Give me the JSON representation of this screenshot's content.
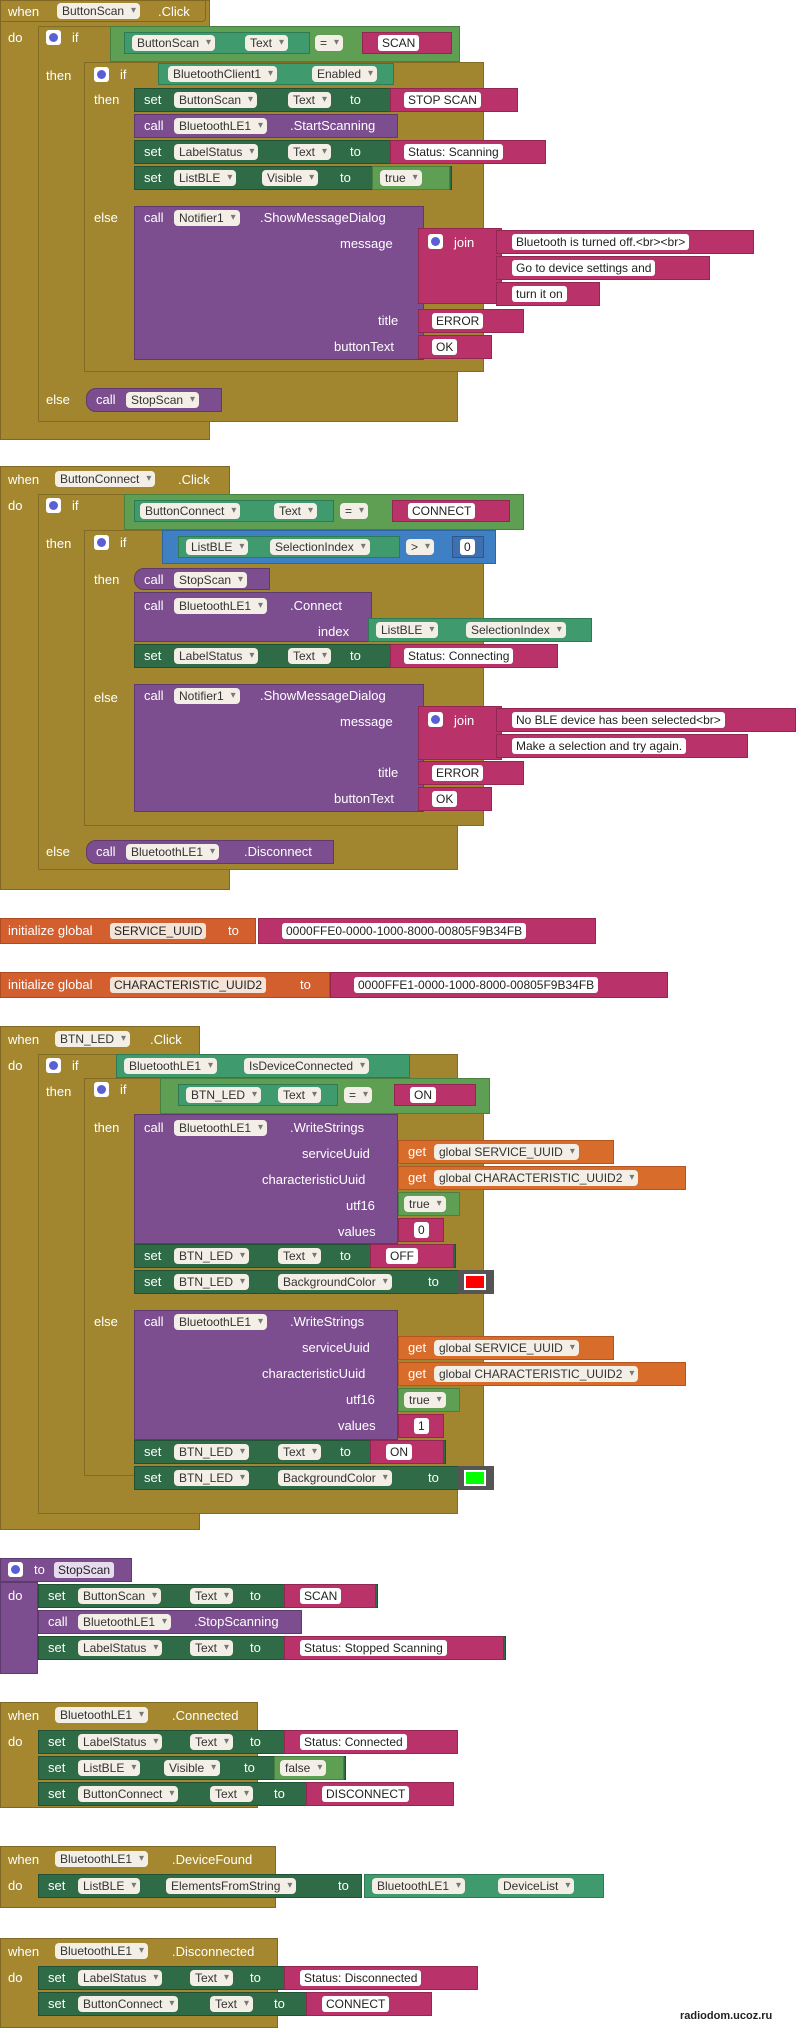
{
  "colors": {
    "event": "#a4872f",
    "procedure": "#7b4a8f",
    "text": "#b9336a",
    "logic": "#3f7fc4",
    "setter": "#2f6b46",
    "var": "#d35f2e",
    "red_swatch": "#ff0000",
    "green_swatch": "#00ff00"
  },
  "kw": {
    "when": "when",
    "do": "do",
    "if": "if",
    "then": "then",
    "else": "else",
    "set": "set",
    "call": "call",
    "to": "to",
    "get": "get",
    "join": "join",
    "init_global": "initialize global",
    "eq": "=",
    "gt": ">",
    "dot": "."
  },
  "params": {
    "message": "message",
    "title": "title",
    "buttonText": "buttonText",
    "index": "index",
    "serviceUuid": "serviceUuid",
    "characteristicUuid": "characteristicUuid",
    "utf16": "utf16",
    "values": "values"
  },
  "ev1": {
    "comp": "ButtonScan",
    "event": ".Click",
    "cmp_comp": "ButtonScan",
    "cmp_prop": "Text",
    "cmp_val": "SCAN",
    "bt_comp": "BluetoothClient1",
    "bt_prop": "Enabled",
    "s1_comp": "ButtonScan",
    "s1_prop": "Text",
    "s1_val": "STOP SCAN",
    "c1_comp": "BluetoothLE1",
    "c1_meth": ".StartScanning",
    "s2_comp": "LabelStatus",
    "s2_prop": "Text",
    "s2_val": "Status: Scanning",
    "s3_comp": "ListBLE",
    "s3_prop": "Visible",
    "s3_val": "true",
    "n_comp": "Notifier1",
    "n_meth": ".ShowMessageDialog",
    "msg1": "Bluetooth is turned off.<br><br>",
    "msg2": "Go to device settings and",
    "msg3": "turn it on",
    "title_val": "ERROR",
    "btn_val": "OK",
    "proc": "StopScan"
  },
  "ev2": {
    "comp": "ButtonConnect",
    "event": ".Click",
    "cmp_comp": "ButtonConnect",
    "cmp_prop": "Text",
    "cmp_val": "CONNECT",
    "l_comp": "ListBLE",
    "l_prop": "SelectionIndex",
    "l_num": "0",
    "proc": "StopScan",
    "c_comp": "BluetoothLE1",
    "c_meth": ".Connect",
    "i_comp": "ListBLE",
    "i_prop": "SelectionIndex",
    "s_comp": "LabelStatus",
    "s_prop": "Text",
    "s_val": "Status: Connecting",
    "n_comp": "Notifier1",
    "n_meth": ".ShowMessageDialog",
    "msg1": "No BLE device has been selected<br>",
    "msg2": "Make a selection and try again.",
    "title_val": "ERROR",
    "btn_val": "OK",
    "d_comp": "BluetoothLE1",
    "d_meth": ".Disconnect"
  },
  "g1": {
    "name": "SERVICE_UUID",
    "val": "0000FFE0-0000-1000-8000-00805F9B34FB"
  },
  "g2": {
    "name": "CHARACTERISTIC_UUID2",
    "val": "0000FFE1-0000-1000-8000-00805F9B34FB"
  },
  "ev3": {
    "comp": "BTN_LED",
    "event": ".Click",
    "conn_comp": "BluetoothLE1",
    "conn_prop": "IsDeviceConnected",
    "cmp_comp": "BTN_LED",
    "cmp_prop": "Text",
    "cmp_val": "ON",
    "w_comp": "BluetoothLE1",
    "w_meth": ".WriteStrings",
    "g_svc": "global SERVICE_UUID",
    "g_chr": "global CHARACTERISTIC_UUID2",
    "utf": "true",
    "v1": "0",
    "t1_comp": "BTN_LED",
    "t1_prop": "Text",
    "t1_val": "OFF",
    "bg_comp": "BTN_LED",
    "bg_prop": "BackgroundColor",
    "v2": "1",
    "t2_val": "ON"
  },
  "proc1": {
    "name": "StopScan",
    "s1_comp": "ButtonScan",
    "s1_prop": "Text",
    "s1_val": "SCAN",
    "c_comp": "BluetoothLE1",
    "c_meth": ".StopScanning",
    "s2_comp": "LabelStatus",
    "s2_prop": "Text",
    "s2_val": "Status: Stopped Scanning"
  },
  "ev4": {
    "comp": "BluetoothLE1",
    "event": ".Connected",
    "s1_comp": "LabelStatus",
    "s1_prop": "Text",
    "s1_val": "Status: Connected",
    "s2_comp": "ListBLE",
    "s2_prop": "Visible",
    "s2_val": "false",
    "s3_comp": "ButtonConnect",
    "s3_prop": "Text",
    "s3_val": "DISCONNECT"
  },
  "ev5": {
    "comp": "BluetoothLE1",
    "event": ".DeviceFound",
    "s_comp": "ListBLE",
    "s_prop": "ElementsFromString",
    "g_comp": "BluetoothLE1",
    "g_prop": "DeviceList"
  },
  "ev6": {
    "comp": "BluetoothLE1",
    "event": ".Disconnected",
    "s1_comp": "LabelStatus",
    "s1_prop": "Text",
    "s1_val": "Status: Disconnected",
    "s2_comp": "ButtonConnect",
    "s2_prop": "Text",
    "s2_val": "CONNECT"
  },
  "watermark": "radiodom.ucoz.ru"
}
